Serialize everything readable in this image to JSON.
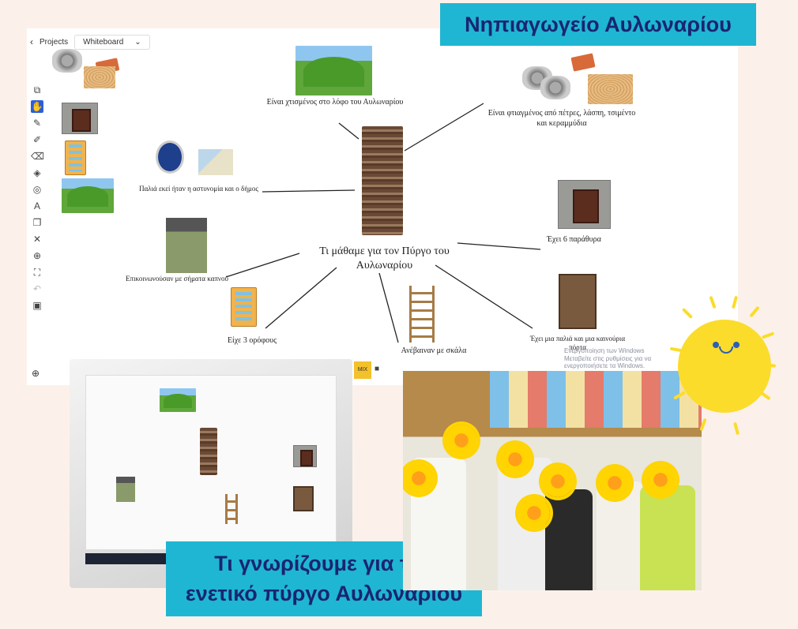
{
  "app": {
    "back_label": "Projects",
    "board_label": "Whiteboard"
  },
  "toolbar_icons": [
    "frame-icon",
    "hand-icon",
    "pen-icon",
    "marker-icon",
    "eraser-icon",
    "fill-icon",
    "shapes-icon",
    "text-icon",
    "copy-icon",
    "delete-icon",
    "target-icon",
    "fit-icon",
    "undo-icon",
    "frame-small-icon"
  ],
  "zoom_icon": "zoom-icon",
  "mindmap": {
    "center": "Τι μάθαμε για τον Πύργο του Αυλωναρίου",
    "hill": "Είναι χτισμένος στο λόφο του Αυλωναρίου",
    "materials": "Είναι φτιαγμένος από πέτρες, λάσπη, τσιμέντο και κεραμμύδια",
    "police": "Παλιά εκεί ήταν η αστυνομία και ο δήμος",
    "windows": "Έχει 6 παράθυρα",
    "smoke": "Επικοινωνούσαν με σήματα καπνού",
    "floors": "Είχε 3 ορόφους",
    "ladder": "Ανέβαιναν με σκάλα",
    "door": "Έχει μια παλιά και μια καινούρια πόρτα"
  },
  "windows_activation": "Ενεργοποίηση των Windows\nΜεταβείτε στις ρυθμίσεις για να ενεργοποιήσετε τα Windows.",
  "taskbar": {
    "mix": "MIX"
  },
  "titles": {
    "top": "Νηπιαγωγείο Αυλωναρίου",
    "bottom_line1": "Τι γνωρίζουμε για τον",
    "bottom_line2": "ενετικό πύργο Αυλωναρίου"
  }
}
